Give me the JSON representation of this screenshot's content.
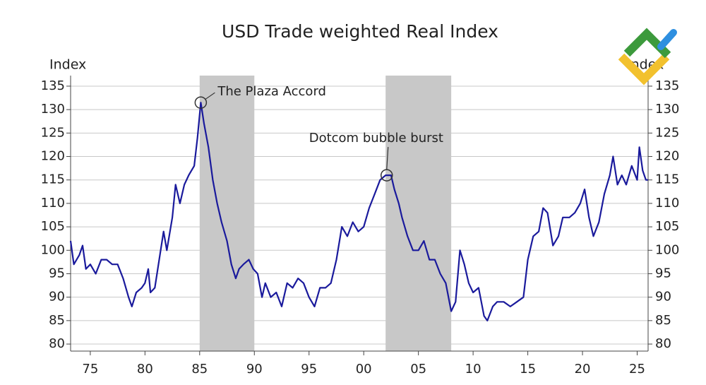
{
  "chart_data": {
    "type": "line",
    "title": "USD Trade weighted Real Index",
    "ylabel": "Index",
    "y2label": "Index",
    "x": [
      1973.2,
      1973.5,
      1974,
      1974.3,
      1974.6,
      1975,
      1975.5,
      1976,
      1976.5,
      1977,
      1977.5,
      1978,
      1978.5,
      1978.8,
      1979.2,
      1979.7,
      1980,
      1980.3,
      1980.5,
      1980.9,
      1981.3,
      1981.7,
      1982,
      1982.5,
      1982.8,
      1983.2,
      1983.6,
      1984,
      1984.5,
      1984.8,
      1985.1,
      1985.4,
      1985.8,
      1986.2,
      1986.6,
      1987,
      1987.5,
      1987.9,
      1988.3,
      1988.6,
      1989,
      1989.5,
      1989.9,
      1990.3,
      1990.7,
      1991,
      1991.5,
      1992,
      1992.5,
      1993,
      1993.5,
      1994,
      1994.5,
      1995,
      1995.5,
      1996,
      1996.5,
      1997,
      1997.5,
      1998,
      1998.5,
      1999,
      1999.5,
      2000,
      2000.5,
      2001,
      2001.5,
      2002,
      2002.5,
      2002.8,
      2003.2,
      2003.5,
      2004,
      2004.5,
      2005,
      2005.5,
      2006,
      2006.5,
      2007,
      2007.5,
      2008,
      2008.4,
      2008.8,
      2009.2,
      2009.6,
      2010,
      2010.5,
      2011,
      2011.3,
      2011.8,
      2012.2,
      2012.8,
      2013.4,
      2014,
      2014.6,
      2015,
      2015.5,
      2016,
      2016.4,
      2016.8,
      2017.3,
      2017.8,
      2018.2,
      2018.8,
      2019.3,
      2019.8,
      2020.2,
      2020.6,
      2021,
      2021.5,
      2022,
      2022.5,
      2022.8,
      2023.2,
      2023.6,
      2024,
      2024.5,
      2025,
      2025.2,
      2025.5,
      2025.8,
      2026
    ],
    "series": [
      {
        "name": "USD Trade weighted Real Index",
        "color": "#1a1a9c",
        "values": [
          102,
          97,
          99,
          101,
          96,
          97,
          95,
          98,
          98,
          97,
          97,
          94,
          90,
          88,
          91,
          92,
          93,
          96,
          91,
          92,
          98,
          104,
          100,
          107,
          114,
          110,
          114,
          116,
          118,
          124,
          131.5,
          127,
          122,
          115,
          110,
          106,
          102,
          97,
          94,
          96,
          97,
          98,
          96,
          95,
          90,
          93,
          90,
          91,
          88,
          93,
          92,
          94,
          93,
          90,
          88,
          92,
          92,
          93,
          98,
          105,
          103,
          106,
          104,
          105,
          109,
          112,
          115,
          116,
          116,
          113,
          110,
          107,
          103,
          100,
          100,
          102,
          98,
          98,
          95,
          93,
          87,
          89,
          100,
          97,
          93,
          91,
          92,
          86,
          85,
          88,
          89,
          89,
          88,
          89,
          90,
          98,
          103,
          104,
          109,
          108,
          101,
          103,
          107,
          107,
          108,
          110,
          113,
          107,
          103,
          106,
          112,
          116,
          120,
          114,
          116,
          114,
          118,
          115,
          122,
          117,
          115,
          115
        ]
      }
    ],
    "xlim": [
      1973.2,
      2026
    ],
    "xticks": [
      {
        "value": 1975,
        "label": "75"
      },
      {
        "value": 1980,
        "label": "80"
      },
      {
        "value": 1985,
        "label": "85"
      },
      {
        "value": 1990,
        "label": "90"
      },
      {
        "value": 1995,
        "label": "95"
      },
      {
        "value": 2000,
        "label": "00"
      },
      {
        "value": 2005,
        "label": "05"
      },
      {
        "value": 2010,
        "label": "10"
      },
      {
        "value": 2015,
        "label": "15"
      },
      {
        "value": 2020,
        "label": "20"
      },
      {
        "value": 2025,
        "label": "25"
      }
    ],
    "ylim": [
      78.5,
      136.5
    ],
    "yticks": [
      80,
      85,
      90,
      95,
      100,
      105,
      110,
      115,
      120,
      125,
      130,
      135
    ],
    "y2lim": [
      78.5,
      136.5
    ],
    "y2ticks": [
      80,
      85,
      90,
      95,
      100,
      105,
      110,
      115,
      120,
      125,
      130,
      135
    ],
    "grid": true,
    "shaded_regions": [
      [
        1985,
        1990
      ],
      [
        2002,
        2008
      ]
    ],
    "annotations": [
      {
        "text": "The Plaza Accord",
        "x": 1985.1,
        "y": 131.5
      },
      {
        "text": "Dotcom bubble burst",
        "x": 2002.1,
        "y": 116
      }
    ]
  }
}
